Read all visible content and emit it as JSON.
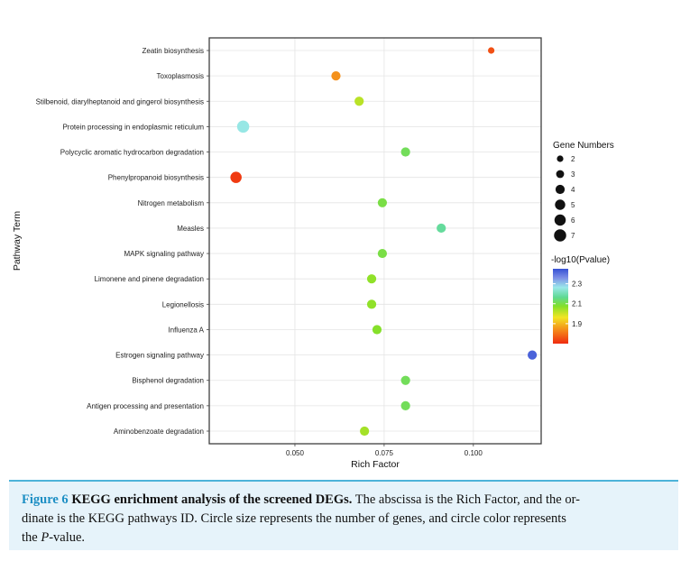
{
  "chart_data": {
    "type": "scatter",
    "xlabel": "Rich Factor",
    "ylabel": "Pathway Term",
    "xlim": [
      0.026,
      0.119
    ],
    "x_ticks": [
      0.05,
      0.075,
      0.1
    ],
    "x_tick_labels": [
      "0.050",
      "0.075",
      "0.100"
    ],
    "grid": true,
    "categories": [
      "Zeatin biosynthesis",
      "Toxoplasmosis",
      "Stilbenoid, diarylheptanoid and gingerol biosynthesis",
      "Protein processing in endoplasmic reticulum",
      "Polycyclic aromatic hydrocarbon degradation",
      "Phenylpropanoid biosynthesis",
      "Nitrogen metabolism",
      "Measles",
      "MAPK signaling pathway",
      "Limonene and pinene degradation",
      "Legionellosis",
      "Influenza A",
      "Estrogen signaling pathway",
      "Bisphenol degradation",
      "Antigen processing and presentation",
      "Aminobenzoate degradation"
    ],
    "points": [
      {
        "term": "Zeatin biosynthesis",
        "rich_factor": 0.105,
        "gene_number": 2,
        "log10p": 1.75
      },
      {
        "term": "Toxoplasmosis",
        "rich_factor": 0.0615,
        "gene_number": 4,
        "log10p": 1.83
      },
      {
        "term": "Stilbenoid, diarylheptanoid and gingerol biosynthesis",
        "rich_factor": 0.068,
        "gene_number": 4,
        "log10p": 1.97
      },
      {
        "term": "Protein processing in endoplasmic reticulum",
        "rich_factor": 0.0355,
        "gene_number": 7,
        "log10p": 2.23
      },
      {
        "term": "Polycyclic aromatic hydrocarbon degradation",
        "rich_factor": 0.081,
        "gene_number": 4,
        "log10p": 2.07
      },
      {
        "term": "Phenylpropanoid biosynthesis",
        "rich_factor": 0.0335,
        "gene_number": 6,
        "log10p": 1.72
      },
      {
        "term": "Nitrogen metabolism",
        "rich_factor": 0.0745,
        "gene_number": 4,
        "log10p": 2.05
      },
      {
        "term": "Measles",
        "rich_factor": 0.091,
        "gene_number": 4,
        "log10p": 2.14
      },
      {
        "term": "MAPK signaling pathway",
        "rich_factor": 0.0745,
        "gene_number": 4,
        "log10p": 2.05
      },
      {
        "term": "Limonene and pinene degradation",
        "rich_factor": 0.0715,
        "gene_number": 4,
        "log10p": 2.01
      },
      {
        "term": "Legionellosis",
        "rich_factor": 0.0715,
        "gene_number": 4,
        "log10p": 2.01
      },
      {
        "term": "Influenza A",
        "rich_factor": 0.073,
        "gene_number": 4,
        "log10p": 2.02
      },
      {
        "term": "Estrogen signaling pathway",
        "rich_factor": 0.1165,
        "gene_number": 4,
        "log10p": 2.42
      },
      {
        "term": "Bisphenol degradation",
        "rich_factor": 0.081,
        "gene_number": 4,
        "log10p": 2.07
      },
      {
        "term": "Antigen processing and presentation",
        "rich_factor": 0.081,
        "gene_number": 4,
        "log10p": 2.07
      },
      {
        "term": "Aminobenzoate degradation",
        "rich_factor": 0.0695,
        "gene_number": 4,
        "log10p": 1.99
      }
    ],
    "size_legend": {
      "title": "Gene Numbers",
      "values": [
        2,
        3,
        4,
        5,
        6,
        7
      ],
      "labels": [
        "2",
        "3",
        "4",
        "5",
        "6",
        "7"
      ]
    },
    "color_legend": {
      "title": "-log10(Pvalue)",
      "range": [
        1.7,
        2.45
      ],
      "ticks": [
        1.9,
        2.1,
        2.3
      ],
      "tick_labels": [
        "1.9",
        "2.1",
        "2.3"
      ],
      "gradient_colors": [
        "#ef2b10",
        "#f47a18",
        "#f2e524",
        "#84e02a",
        "#5fd993",
        "#9ae8ea",
        "#7c8ee6",
        "#3651d4"
      ]
    },
    "legend_placement": "right"
  },
  "caption": {
    "label": "Figure 6",
    "title": "KEGG enrichment analysis of the screened DEGs.",
    "body_1": " The abscissa is the Rich Factor, and the or-",
    "body_2": "dinate is the KEGG pathways ID. Circle size represents the number of genes, and circle color represents",
    "body_3a": "the ",
    "body_3b": "P",
    "body_3c": "-value."
  }
}
